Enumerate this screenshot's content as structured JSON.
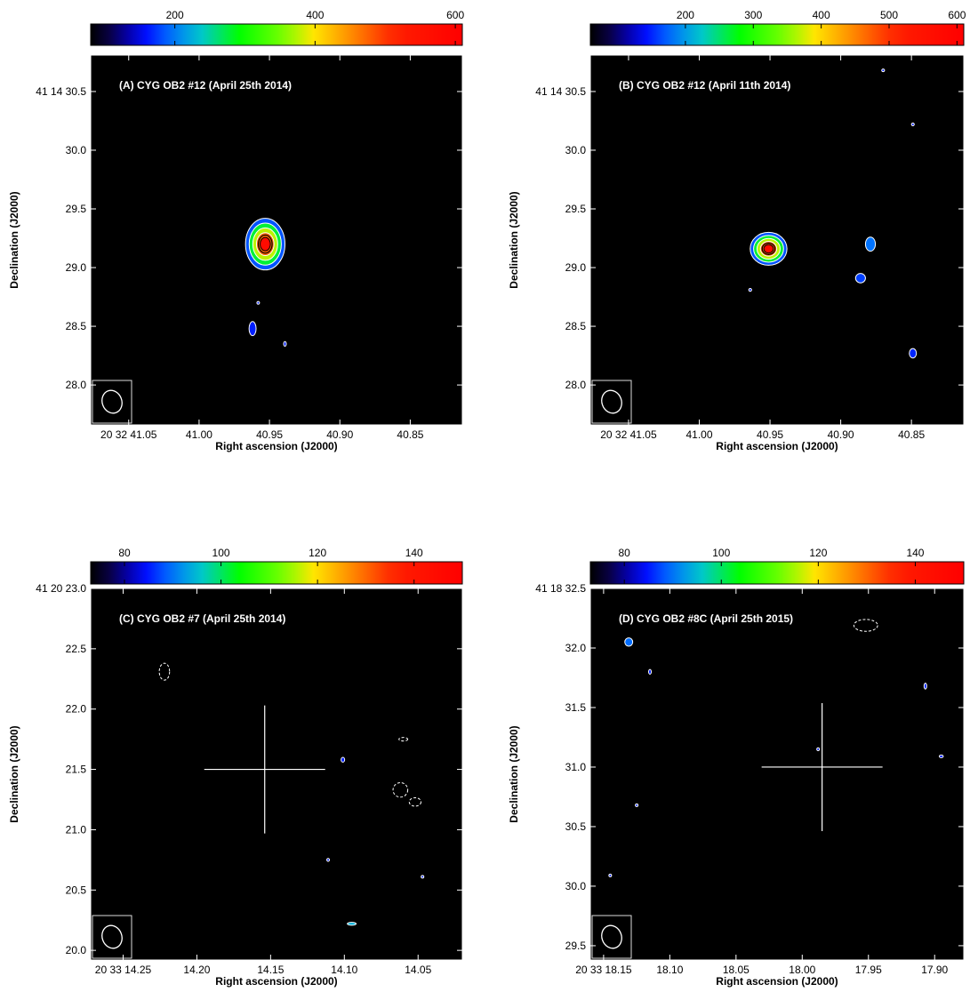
{
  "chart_data": [
    {
      "type": "heatmap",
      "title": "(A) CYG OB2 #12 (April 25th 2014)",
      "xlabel": "Right ascension (J2000)",
      "ylabel": "Declination (J2000)",
      "x_ticks": [
        "20 32 41.05",
        "41.00",
        "40.95",
        "40.90",
        "40.85"
      ],
      "y_ticks": [
        "41 14 30.5",
        "30.0",
        "29.5",
        "29.0",
        "28.5",
        "28.0"
      ],
      "colorbar": {
        "ticks": [
          200,
          400,
          600
        ],
        "range": [
          80,
          610
        ],
        "colormap": "rainbow"
      },
      "cross": false,
      "sources": [
        {
          "ra": 40.953,
          "dec": 29.2,
          "peak": 600,
          "rx": 0.014,
          "ry": 0.22,
          "levels": 5
        },
        {
          "ra": 40.962,
          "dec": 28.48,
          "peak": 160,
          "rx": 0.0025,
          "ry": 0.06,
          "levels": 1
        },
        {
          "ra": 40.958,
          "dec": 28.7,
          "peak": 120,
          "rx": 0.0008,
          "ry": 0.012,
          "levels": 1
        },
        {
          "ra": 40.939,
          "dec": 28.35,
          "peak": 110,
          "rx": 0.0005,
          "ry": 0.02,
          "levels": 1
        }
      ],
      "neg_contours": []
    },
    {
      "type": "heatmap",
      "title": "(B) CYG OB2 #12 (April 11th 2014)",
      "xlabel": "Right ascension (J2000)",
      "ylabel": "Declination (J2000)",
      "x_ticks": [
        "20 32 41.05",
        "41.00",
        "40.95",
        "40.90",
        "40.85"
      ],
      "y_ticks": [
        "41 14 30.5",
        "30.0",
        "29.5",
        "29.0",
        "28.5",
        "28.0"
      ],
      "colorbar": {
        "ticks": [
          200,
          300,
          400,
          500,
          600
        ],
        "range": [
          60,
          610
        ],
        "colormap": "rainbow"
      },
      "cross": false,
      "sources": [
        {
          "ra": 40.951,
          "dec": 29.16,
          "peak": 600,
          "rx": 0.013,
          "ry": 0.14,
          "levels": 5
        },
        {
          "ra": 40.879,
          "dec": 29.2,
          "peak": 180,
          "rx": 0.0035,
          "ry": 0.06,
          "levels": 1
        },
        {
          "ra": 40.886,
          "dec": 28.91,
          "peak": 160,
          "rx": 0.0035,
          "ry": 0.04,
          "levels": 1
        },
        {
          "ra": 40.849,
          "dec": 28.27,
          "peak": 150,
          "rx": 0.0025,
          "ry": 0.04,
          "levels": 1
        },
        {
          "ra": 40.849,
          "dec": 30.22,
          "peak": 120,
          "rx": 0.001,
          "ry": 0.012,
          "levels": 1
        },
        {
          "ra": 40.964,
          "dec": 28.81,
          "peak": 110,
          "rx": 0.001,
          "ry": 0.012,
          "levels": 1
        },
        {
          "ra": 40.87,
          "dec": 30.68,
          "peak": 110,
          "rx": 0.001,
          "ry": 0.006,
          "levels": 1
        }
      ],
      "neg_contours": []
    },
    {
      "type": "heatmap",
      "title": "(C) CYG OB2 #7 (April 25th 2014)",
      "xlabel": "Right ascension (J2000)",
      "ylabel": "Declination (J2000)",
      "x_ticks": [
        "20 33 14.25",
        "14.20",
        "14.15",
        "14.10",
        "14.05"
      ],
      "y_ticks": [
        "41 20 23.0",
        "22.5",
        "22.0",
        "21.5",
        "21.0",
        "20.5",
        "20.0"
      ],
      "colorbar": {
        "ticks": [
          80,
          100,
          120,
          140
        ],
        "range": [
          73,
          150
        ],
        "colormap": "rainbow"
      },
      "cross": true,
      "cross_center": {
        "ra": 14.154,
        "dec": 21.5
      },
      "sources": [
        {
          "ra": 14.095,
          "dec": 20.22,
          "peak": 90,
          "rx": 0.003,
          "ry": 0.012,
          "levels": 1
        },
        {
          "ra": 14.101,
          "dec": 21.58,
          "peak": 76,
          "rx": 0.0012,
          "ry": 0.02,
          "levels": 1
        },
        {
          "ra": 14.047,
          "dec": 20.61,
          "peak": 76,
          "rx": 0.0008,
          "ry": 0.01,
          "levels": 1
        },
        {
          "ra": 14.111,
          "dec": 20.75,
          "peak": 76,
          "rx": 0.0005,
          "ry": 0.012,
          "levels": 1
        }
      ],
      "neg_contours": [
        {
          "ra": 14.222,
          "dec": 22.31,
          "rx": 0.0035,
          "ry": 0.07
        },
        {
          "ra": 14.062,
          "dec": 21.33,
          "rx": 0.005,
          "ry": 0.06
        },
        {
          "ra": 14.052,
          "dec": 21.23,
          "rx": 0.004,
          "ry": 0.035
        },
        {
          "ra": 14.06,
          "dec": 21.75,
          "rx": 0.003,
          "ry": 0.006
        }
      ]
    },
    {
      "type": "heatmap",
      "title": "(D) CYG OB2 #8C (April 25th 2015)",
      "xlabel": "Right ascension (J2000)",
      "ylabel": "Declination (J2000)",
      "x_ticks": [
        "20 33 18.15",
        "18.10",
        "18.05",
        "18.00",
        "17.95",
        "17.90"
      ],
      "y_ticks": [
        "41 18 32.5",
        "32.0",
        "31.5",
        "31.0",
        "30.5",
        "30.0",
        "29.5"
      ],
      "colorbar": {
        "ticks": [
          80,
          100,
          120,
          140
        ],
        "range": [
          73,
          150
        ],
        "colormap": "rainbow"
      },
      "cross": true,
      "cross_center": {
        "ra": 17.985,
        "dec": 31.0
      },
      "sources": [
        {
          "ra": 18.131,
          "dec": 32.05,
          "peak": 85,
          "rx": 0.003,
          "ry": 0.035,
          "levels": 1
        },
        {
          "ra": 18.115,
          "dec": 31.8,
          "peak": 76,
          "rx": 0.001,
          "ry": 0.02,
          "levels": 1
        },
        {
          "ra": 18.125,
          "dec": 30.68,
          "peak": 76,
          "rx": 0.001,
          "ry": 0.01,
          "levels": 1
        },
        {
          "ra": 18.145,
          "dec": 30.09,
          "peak": 76,
          "rx": 0.001,
          "ry": 0.008,
          "levels": 1
        },
        {
          "ra": 17.988,
          "dec": 31.15,
          "peak": 76,
          "rx": 0.0006,
          "ry": 0.012,
          "levels": 1
        },
        {
          "ra": 17.907,
          "dec": 31.68,
          "peak": 76,
          "rx": 0.001,
          "ry": 0.025,
          "levels": 1
        },
        {
          "ra": 17.895,
          "dec": 31.09,
          "peak": 76,
          "rx": 0.0015,
          "ry": 0.01,
          "levels": 1
        }
      ],
      "neg_contours": [
        {
          "ra": 17.952,
          "dec": 32.19,
          "rx": 0.009,
          "ry": 0.05
        }
      ]
    }
  ]
}
